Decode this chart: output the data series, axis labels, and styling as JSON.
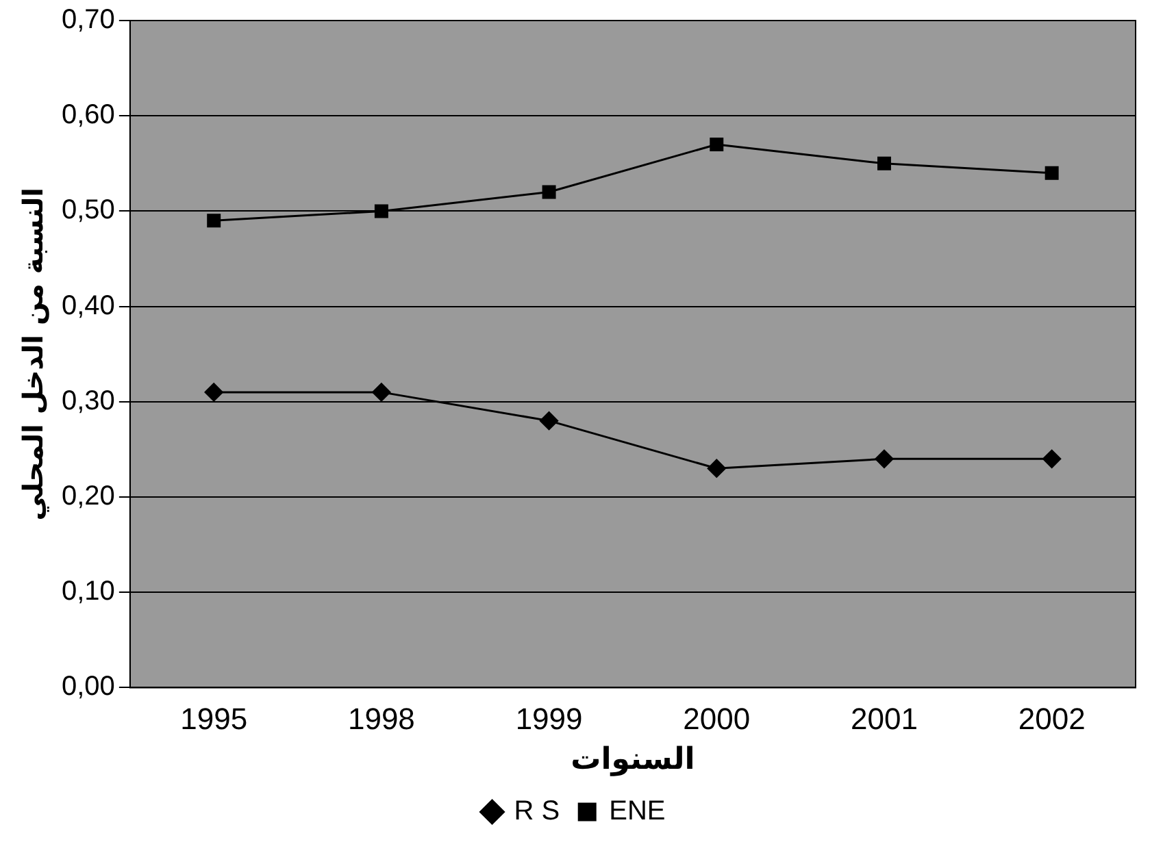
{
  "chart_data": {
    "type": "line",
    "xlabel": "السنوات",
    "ylabel": "النسبة من الدخل المحلي",
    "categories": [
      "1995",
      "1998",
      "1999",
      "2000",
      "2001",
      "2002"
    ],
    "series": [
      {
        "name": "R S",
        "color": "#000000",
        "marker": "diamond",
        "values": [
          0.31,
          0.31,
          0.28,
          0.23,
          0.24,
          0.24
        ]
      },
      {
        "name": "ENE",
        "color": "#000000",
        "marker": "square",
        "values": [
          0.49,
          0.5,
          0.52,
          0.57,
          0.55,
          0.54
        ]
      }
    ],
    "ylim": [
      0,
      0.7
    ],
    "yticks": [
      {
        "value": 0,
        "label": "0,00"
      },
      {
        "value": 0.1,
        "label": "0,10"
      },
      {
        "value": 0.2,
        "label": "0,20"
      },
      {
        "value": 0.3,
        "label": "0,30"
      },
      {
        "value": 0.4,
        "label": "0,40"
      },
      {
        "value": 0.5,
        "label": "0,50"
      },
      {
        "value": 0.6,
        "label": "0,60"
      },
      {
        "value": 0.7,
        "label": "0,70"
      }
    ],
    "grid": "y",
    "legend": "bottom",
    "line_style": "solid"
  }
}
